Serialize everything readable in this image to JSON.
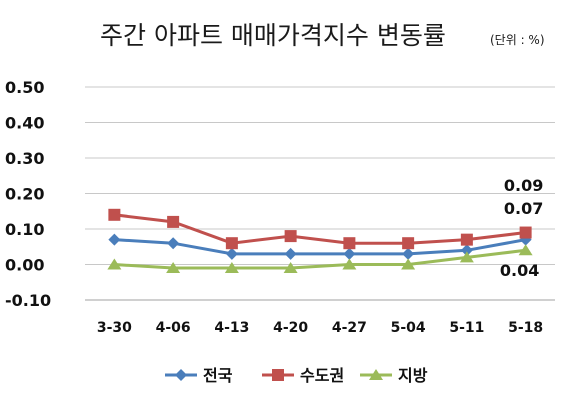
{
  "chart_data": {
    "type": "line",
    "title": "주간 아파트 매매가격지수 변동률",
    "unit_note": "(단위 : %)",
    "xlabel": "",
    "ylabel": "",
    "categories": [
      "3-30",
      "4-06",
      "4-13",
      "4-20",
      "4-27",
      "5-04",
      "5-11",
      "5-18"
    ],
    "ylim": [
      -0.1,
      0.5
    ],
    "yticks": [
      "0.50",
      "0.40",
      "0.30",
      "0.20",
      "0.10",
      "0.00",
      "-0.10"
    ],
    "ytick_values": [
      0.5,
      0.4,
      0.3,
      0.2,
      0.1,
      0.0,
      -0.1
    ],
    "grid": true,
    "legend_position": "bottom",
    "series": [
      {
        "name": "전국",
        "color": "#4a7ebb",
        "marker": "diamond",
        "values": [
          0.07,
          0.06,
          0.03,
          0.03,
          0.03,
          0.03,
          0.04,
          0.07
        ]
      },
      {
        "name": "수도권",
        "color": "#c0504d",
        "marker": "square",
        "values": [
          0.14,
          0.12,
          0.06,
          0.08,
          0.06,
          0.06,
          0.07,
          0.09
        ]
      },
      {
        "name": "지방",
        "color": "#9bbb59",
        "marker": "triangle",
        "values": [
          0.0,
          -0.01,
          -0.01,
          -0.01,
          0.0,
          0.0,
          0.02,
          0.04
        ]
      }
    ],
    "data_labels": [
      "0.09",
      "0.07",
      "0.04"
    ]
  }
}
